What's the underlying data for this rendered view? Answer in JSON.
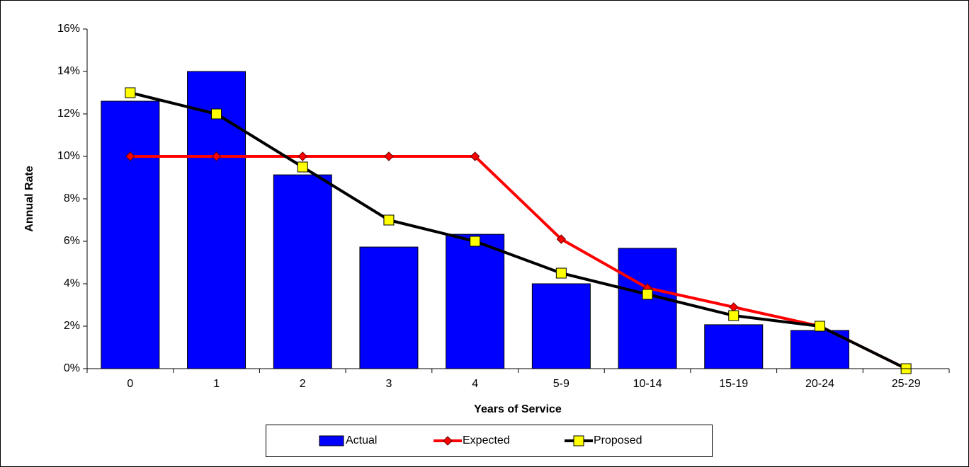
{
  "chart_data": {
    "type": "combo",
    "x_label": "Years of Service",
    "y_label": "Annual Rate",
    "categories": [
      "0",
      "1",
      "2",
      "3",
      "4",
      "5-9",
      "10-14",
      "15-19",
      "20-24",
      "25-29"
    ],
    "series": [
      {
        "name": "Actual",
        "type": "bar",
        "color": "#0000ff",
        "values": [
          12.6,
          14.0,
          9.13,
          5.73,
          6.33,
          4.0,
          5.67,
          2.07,
          1.8,
          0
        ]
      },
      {
        "name": "Expected",
        "type": "line",
        "marker": "diamond",
        "color": "#ff0000",
        "marker_color": "#ff0000",
        "values": [
          10,
          10,
          10,
          10,
          10,
          6.1,
          3.8,
          2.9,
          2.0,
          0
        ]
      },
      {
        "name": "Proposed",
        "type": "line",
        "marker": "square",
        "color": "#000000",
        "marker_color": "#ffff00",
        "values": [
          13,
          12,
          9.5,
          7,
          6,
          4.5,
          3.5,
          2.5,
          2.0,
          0
        ]
      }
    ],
    "ylim": [
      0,
      16
    ],
    "yticks": [
      {
        "value": 0,
        "label": "0%"
      },
      {
        "value": 2,
        "label": "2%"
      },
      {
        "value": 4,
        "label": "4%"
      },
      {
        "value": 6,
        "label": "6%"
      },
      {
        "value": 8,
        "label": "8%"
      },
      {
        "value": 10,
        "label": "10%"
      },
      {
        "value": 12,
        "label": "12%"
      },
      {
        "value": 14,
        "label": "14%"
      },
      {
        "value": 16,
        "label": "16%"
      }
    ],
    "legend": "bottom"
  }
}
